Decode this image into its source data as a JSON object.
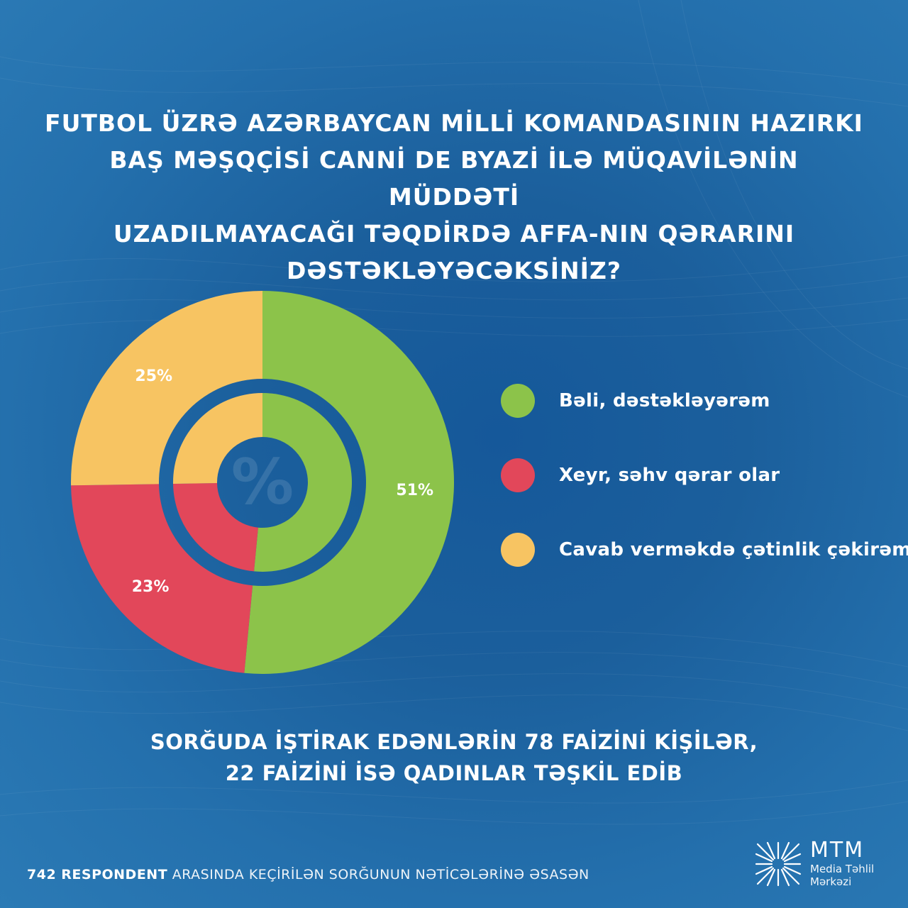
{
  "title_lines": [
    "FUTBOL ÜZRƏ AZƏRBAYCAN MİLLİ KOMANDASININ HAZIRKI",
    "BAŞ MƏŞQÇİSİ CANNİ DE BYAZİ İLƏ MÜQAVİLƏNİN MÜDDƏTİ",
    "UZADILMAYACAĞI TƏQDİRDƏ AFFA-NIN QƏRARINI",
    "DƏSTƏKLƏYƏCƏKSİNİZ?"
  ],
  "chart_data": {
    "type": "pie",
    "categories": [
      "Bəli, dəstəkləyərəm",
      "Xeyr, səhv qərar olar",
      "Cavab verməkdə çətinlik çəkirəm"
    ],
    "values": [
      51,
      23,
      25
    ],
    "labels": [
      "51%",
      "23%",
      "25%"
    ],
    "colors": [
      "#8cc34a",
      "#e2475a",
      "#f7c462"
    ],
    "center_symbol": "%",
    "legend_position": "right"
  },
  "note_lines": [
    "SORĞUDA İŞTİRAK EDƏNLƏRİN 78 FAİZİNİ KİŞİLƏR,",
    "22 FAİZİNİ İSƏ QADINLAR TƏŞKİL EDİB"
  ],
  "footer": {
    "bold": "742 RESPONDENT",
    "rest": " ARASINDA KEÇİRİLƏN SORĞUNUN NƏTİCƏLƏRİNƏ ƏSASƏN"
  },
  "logo": {
    "main": "MTM",
    "line1": "Media Təhlil",
    "line2": "Mərkəzi"
  }
}
